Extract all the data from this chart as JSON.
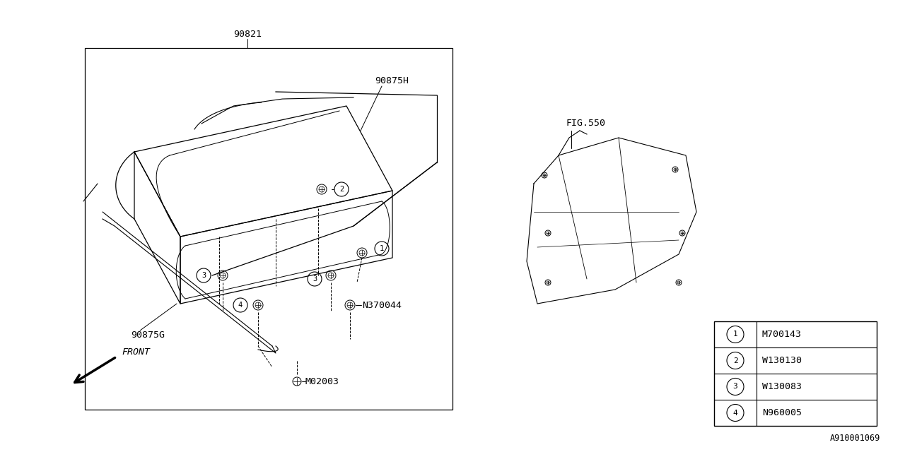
{
  "background_color": "#ffffff",
  "line_color": "#000000",
  "diagram_id": "A910001069",
  "box_label": "90821",
  "label_90875H": "90875H",
  "label_90875G": "90875G",
  "label_N370044": "N370044",
  "label_M02003": "M02003",
  "label_FIG550": "FIG.550",
  "label_FRONT": "FRONT",
  "ref_table": {
    "items": [
      {
        "num": 1,
        "code": "M700143"
      },
      {
        "num": 2,
        "code": "W130130"
      },
      {
        "num": 3,
        "code": "W130083"
      },
      {
        "num": 4,
        "code": "N960005"
      }
    ]
  }
}
